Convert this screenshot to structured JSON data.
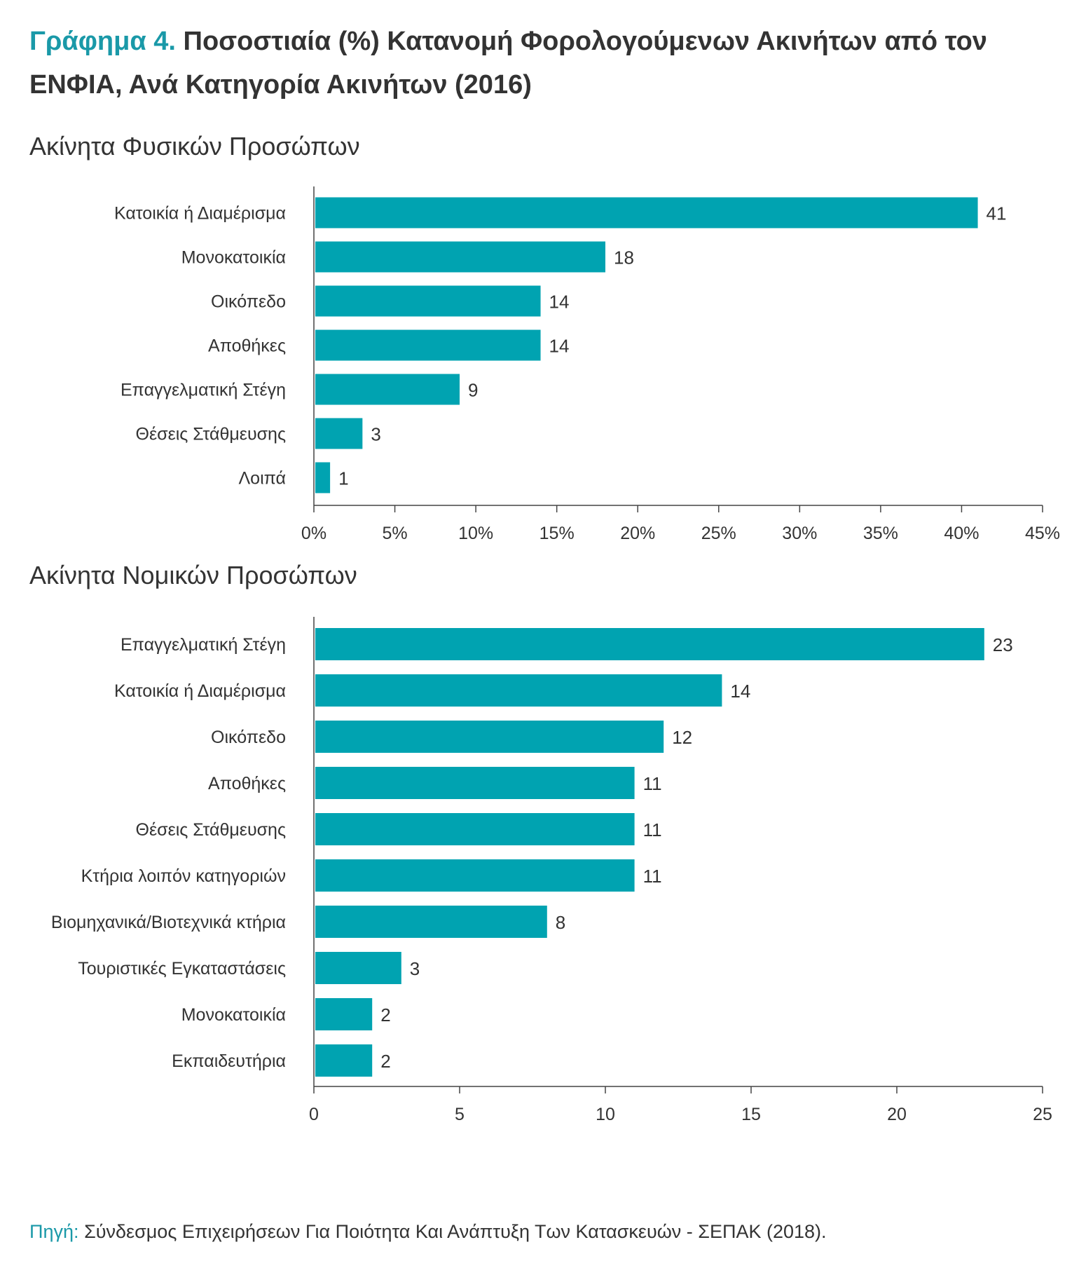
{
  "title": {
    "prefix": "Γράφημα 4.",
    "text": "Ποσοστιαία (%) Κατανομή Φορολογούμενων Ακινήτων από τον ΕΝΦΙΑ, Ανά Κατηγορία Ακινήτων (2016)"
  },
  "colors": {
    "bar": "#00a3b1",
    "accent_text": "#1a99a8",
    "axis": "#444444"
  },
  "chart_data": [
    {
      "type": "bar",
      "orientation": "horizontal",
      "title": "Ακίνητα Φυσικών Προσώπων",
      "categories": [
        "Κατοικία ή Διαμέρισμα",
        "Μονοκατοικία",
        "Οικόπεδο",
        "Αποθήκες",
        "Επαγγελματική Στέγη",
        "Θέσεις Στάθμευσης",
        "Λοιπά"
      ],
      "values": [
        41,
        18,
        14,
        14,
        9,
        3,
        1
      ],
      "value_labels": [
        "41",
        "18",
        "14",
        "14",
        "9",
        "3",
        "1"
      ],
      "xlim": [
        0,
        45
      ],
      "xticks": [
        0,
        5,
        10,
        15,
        20,
        25,
        30,
        35,
        40,
        45
      ],
      "xtick_labels": [
        "0%",
        "5%",
        "10%",
        "15%",
        "20%",
        "25%",
        "30%",
        "35%",
        "40%",
        "45%"
      ],
      "xlabel": "",
      "ylabel": "",
      "grid": false,
      "legend": "none"
    },
    {
      "type": "bar",
      "orientation": "horizontal",
      "title": "Ακίνητα Νομικών Προσώπων",
      "categories": [
        "Επαγγελματική Στέγη",
        "Κατοικία ή Διαμέρισμα",
        "Οικόπεδο",
        "Αποθήκες",
        "Θέσεις Στάθμευσης",
        "Κτήρια λοιπόν κατηγοριών",
        "Βιομηχανικά/Βιοτεχνικά κτήρια",
        "Τουριστικές Εγκαταστάσεις",
        "Μονοκατοικία",
        "Εκπαιδευτήρια"
      ],
      "values": [
        23,
        14,
        12,
        11,
        11,
        11,
        8,
        3,
        2,
        2
      ],
      "value_labels": [
        "23",
        "14",
        "12",
        "11",
        "11",
        "11",
        "8",
        "3",
        "2",
        "2"
      ],
      "xlim": [
        0,
        25
      ],
      "xticks": [
        0,
        5,
        10,
        15,
        20,
        25
      ],
      "xtick_labels": [
        "0",
        "5",
        "10",
        "15",
        "20",
        "25"
      ],
      "xlabel": "",
      "ylabel": "",
      "grid": false,
      "legend": "none"
    }
  ],
  "source": {
    "prefix": "Πηγή:",
    "text": "Σύνδεσμος Επιχειρήσεων Για Ποιότητα Και Ανάπτυξη Των Κατασκευών - ΣΕΠΑΚ (2018)."
  }
}
